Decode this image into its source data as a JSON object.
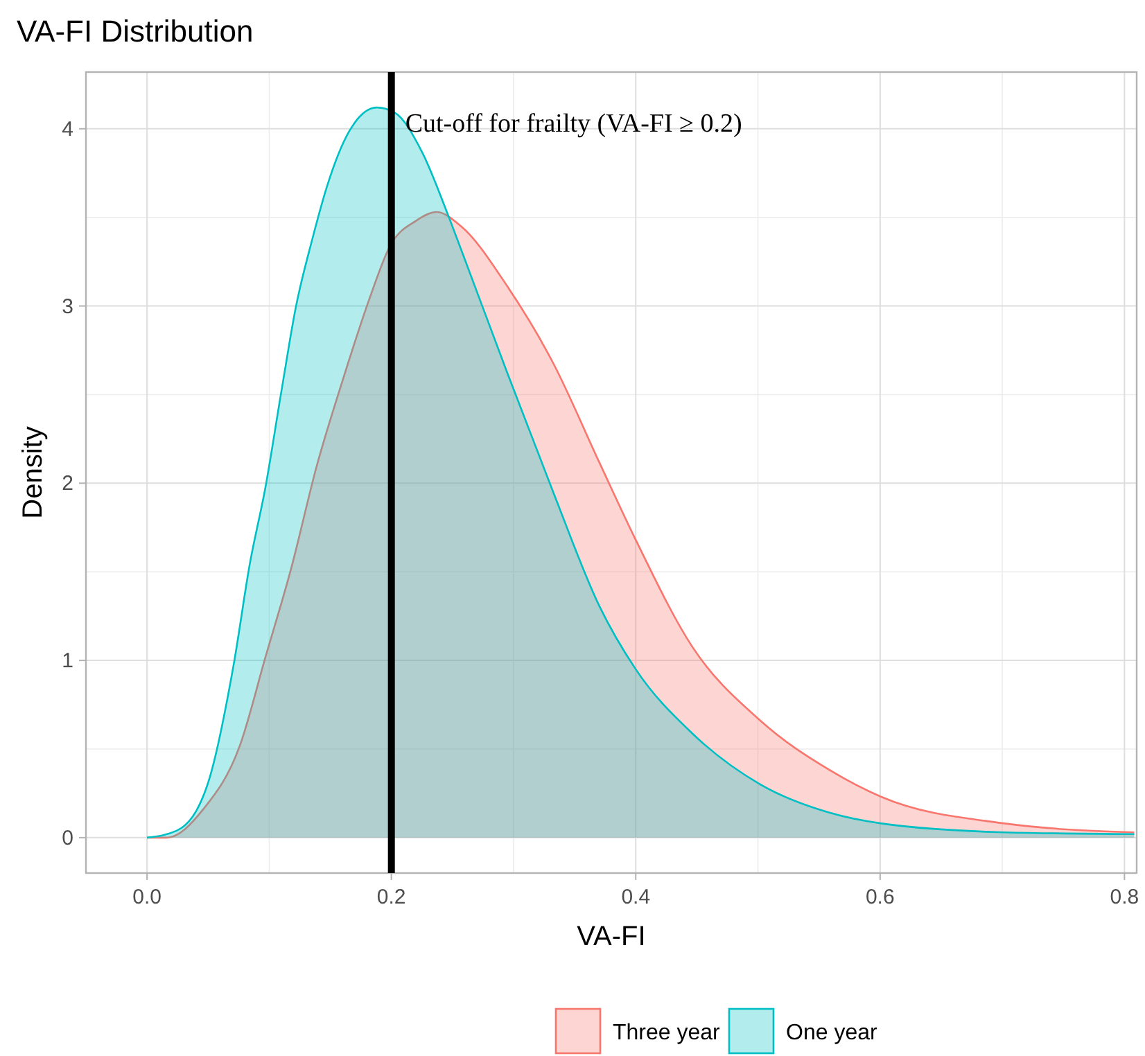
{
  "chart_data": {
    "type": "area",
    "title": "VA-FI Distribution",
    "xlabel": "VA-FI",
    "ylabel": "Density",
    "xlim": [
      -0.05,
      0.81
    ],
    "ylim": [
      -0.2,
      4.32
    ],
    "xticks": [
      {
        "value": 0,
        "label": "0.0"
      },
      0.2,
      0.4,
      0.6,
      0.8
    ],
    "yticks": [
      0,
      1,
      2,
      3,
      4
    ],
    "grid": true,
    "legend": "bottom",
    "ref_lines": [
      {
        "axis": "x",
        "value": 0.2,
        "label": "Cut-off for frailty (VA-FI ≥ 0.2)",
        "color": "#000000"
      }
    ],
    "series": [
      {
        "name": "Three year",
        "color": "#f8766d",
        "x": [
          0,
          0.016,
          0.046,
          0.076,
          0.097,
          0.118,
          0.139,
          0.161,
          0.182,
          0.199,
          0.22,
          0.237,
          0.257,
          0.295,
          0.333,
          0.37,
          0.4,
          0.446,
          0.502,
          0.559,
          0.601,
          0.702,
          0.808
        ],
        "values": [
          0,
          0,
          0.16,
          0.52,
          1.02,
          1.52,
          2.1,
          2.6,
          3.04,
          3.34,
          3.48,
          3.53,
          3.45,
          3.11,
          2.67,
          2.12,
          1.68,
          1.08,
          0.66,
          0.38,
          0.23,
          0.08,
          0.03
        ]
      },
      {
        "name": "One year",
        "color": "#00bfc4",
        "x": [
          0,
          0.0245,
          0.05,
          0.071,
          0.084,
          0.097,
          0.11,
          0.122,
          0.135,
          0.148,
          0.165,
          0.188,
          0.203,
          0.225,
          0.246,
          0.257,
          0.295,
          0.333,
          0.37,
          0.4,
          0.446,
          0.502,
          0.559,
          0.601,
          0.702,
          0.808
        ],
        "values": [
          0,
          0.04,
          0.31,
          0.98,
          1.54,
          1.98,
          2.52,
          3.0,
          3.37,
          3.69,
          3.98,
          4.12,
          4.09,
          3.87,
          3.52,
          3.32,
          2.62,
          1.94,
          1.31,
          0.95,
          0.59,
          0.3,
          0.14,
          0.08,
          0.03,
          0.02
        ]
      }
    ]
  }
}
